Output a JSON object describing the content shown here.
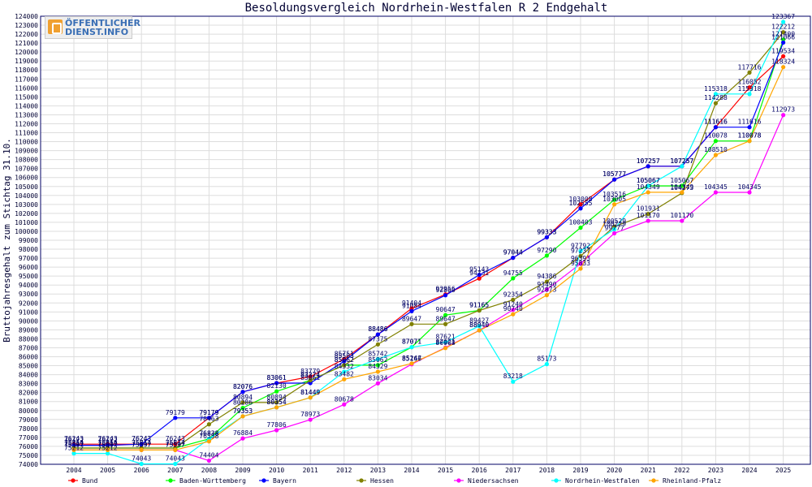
{
  "chart_data": {
    "type": "line",
    "title": "Besoldungsvergleich Nordrhein-Westfalen R 2 Endgehalt",
    "xlabel": "",
    "ylabel": "Bruttojahresgehalt zum Stichtag 31.10.",
    "ylim": [
      74000,
      124000
    ],
    "ystep": 1000,
    "grid": true,
    "legend_position": "bottom",
    "categories": [
      "2004",
      "2005",
      "2006",
      "2007",
      "2008",
      "2009",
      "2010",
      "2011",
      "2012",
      "2013",
      "2014",
      "2015",
      "2016",
      "2017",
      "2018",
      "2019",
      "2020",
      "2021",
      "2022",
      "2023",
      "2024",
      "2025"
    ],
    "series": [
      {
        "name": "Bund",
        "color": "#ff0000",
        "values": [
          76243,
          76243,
          76243,
          76243,
          79179,
          82076,
          83061,
          83779,
          85751,
          88486,
          91404,
          92956,
          94731,
          97044,
          99333,
          103008,
          105777,
          107257,
          107257,
          111616,
          116052,
          119534
        ]
      },
      {
        "name": "Baden-Württemberg",
        "color": "#00ff00",
        "values": [
          75814,
          75814,
          75814,
          75814,
          76838,
          80286,
          82130,
          83374,
          85062,
          85062,
          87071,
          90647,
          91165,
          94755,
          97290,
          100403,
          103516,
          105067,
          105067,
          110078,
          110078,
          121400
        ]
      },
      {
        "name": "Bayern",
        "color": "#0000ff",
        "values": [
          76122,
          76122,
          76243,
          79179,
          79179,
          82076,
          83061,
          83061,
          85503,
          88486,
          91084,
          92860,
          95143,
          97044,
          99333,
          102555,
          105777,
          107257,
          107257,
          111616,
          111616,
          121066
        ]
      },
      {
        "name": "Hessen",
        "color": "#808000",
        "values": [
          75814,
          75814,
          75814,
          75814,
          78463,
          80894,
          80894,
          83374,
          85062,
          87375,
          89647,
          89647,
          91165,
          92354,
          94386,
          97237,
          100529,
          101931,
          104273,
          114288,
          117716,
          122212
        ]
      },
      {
        "name": "Niedersachsen",
        "color": "#ff00ff",
        "values": [
          75597,
          75597,
          75597,
          75597,
          74404,
          76884,
          77806,
          78973,
          80678,
          83034,
          85166,
          87021,
          88940,
          91240,
          93490,
          96393,
          99777,
          101170,
          101170,
          104345,
          104345,
          112973
        ]
      },
      {
        "name": "Nordrhein-Westfalen",
        "color": "#00ffff",
        "values": [
          75212,
          75212,
          74043,
          74043,
          76838,
          79353,
          80354,
          81449,
          84332,
          85742,
          87071,
          87621,
          89427,
          83218,
          85173,
          97792,
          100229,
          105067,
          107257,
          115318,
          115318,
          123367
        ]
      },
      {
        "name": "Rheinland-Pfalz",
        "color": "#ffa500",
        "values": [
          75597,
          75597,
          75597,
          75597,
          76558,
          79353,
          80354,
          81449,
          83482,
          84329,
          85247,
          86968,
          88940,
          90740,
          92873,
          95833,
          103005,
          104349,
          104349,
          108510,
          110078,
          118324
        ]
      }
    ]
  },
  "logo": {
    "line1": "ÖFFENTLICHER",
    "line2": "DIENST.INFO"
  }
}
